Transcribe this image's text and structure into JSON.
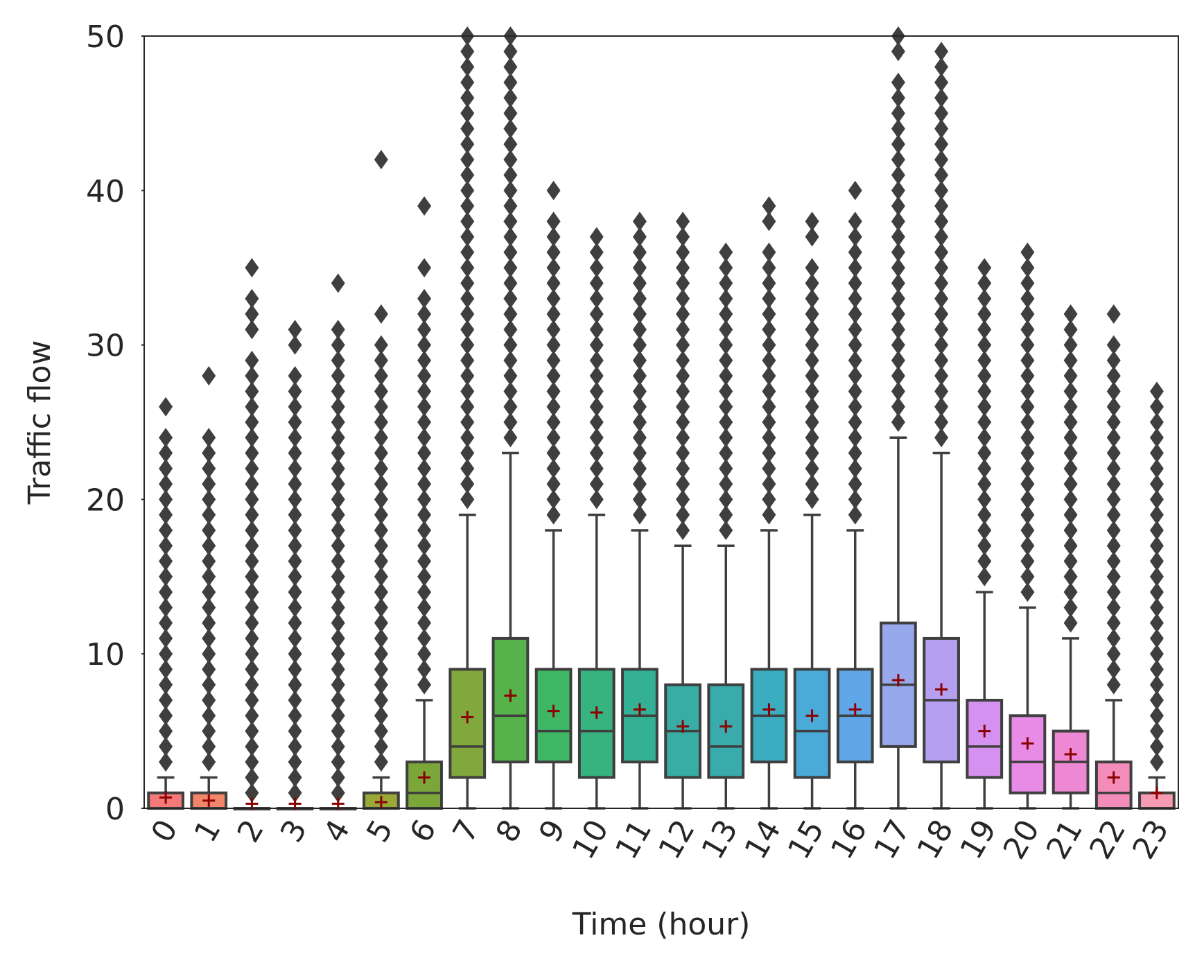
{
  "chart_data": {
    "type": "box",
    "title": "",
    "xlabel": "Time (hour)",
    "ylabel": "Traffic flow",
    "ylim": [
      0,
      50
    ],
    "yticks": [
      0,
      10,
      20,
      30,
      40,
      50
    ],
    "grid": false,
    "legend": "none",
    "categories": [
      "0",
      "1",
      "2",
      "3",
      "4",
      "5",
      "6",
      "7",
      "8",
      "9",
      "10",
      "11",
      "12",
      "13",
      "14",
      "15",
      "16",
      "17",
      "18",
      "19",
      "20",
      "21",
      "22",
      "23"
    ],
    "colors": [
      "#f47a7a",
      "#f1866a",
      "#e49244",
      "#d49c2c",
      "#b1a630",
      "#9aa836",
      "#7ba73a",
      "#80a83c",
      "#56b24a",
      "#3db764",
      "#36b37f",
      "#34b194",
      "#37ada5",
      "#39abad",
      "#3aadc0",
      "#4aaad8",
      "#60a7e8",
      "#97a8ed",
      "#b59ff0",
      "#d491ef",
      "#e78be7",
      "#ef88d4",
      "#f38cba",
      "#f59ab0"
    ],
    "boxes": [
      {
        "q1": 0,
        "median": 0,
        "q3": 1,
        "whisker_low": 0,
        "whisker_high": 2,
        "mean": 0.7,
        "outliers": [
          3,
          4,
          5,
          6,
          7,
          8,
          9,
          10,
          11,
          12,
          13,
          14,
          15,
          16,
          17,
          18,
          19,
          20,
          21,
          22,
          23,
          24,
          26
        ]
      },
      {
        "q1": 0,
        "median": 0,
        "q3": 1,
        "whisker_low": 0,
        "whisker_high": 2,
        "mean": 0.5,
        "outliers": [
          3,
          4,
          5,
          6,
          7,
          8,
          9,
          10,
          11,
          12,
          13,
          14,
          15,
          16,
          17,
          18,
          19,
          20,
          21,
          22,
          23,
          24,
          28
        ]
      },
      {
        "q1": 0,
        "median": 0,
        "q3": 0,
        "whisker_low": 0,
        "whisker_high": 0,
        "mean": 0.3,
        "outliers": [
          1,
          2,
          3,
          4,
          5,
          6,
          7,
          8,
          9,
          10,
          11,
          12,
          13,
          14,
          15,
          16,
          17,
          18,
          19,
          20,
          21,
          22,
          23,
          24,
          25,
          26,
          27,
          28,
          29,
          31,
          32,
          33,
          35
        ]
      },
      {
        "q1": 0,
        "median": 0,
        "q3": 0,
        "whisker_low": 0,
        "whisker_high": 0,
        "mean": 0.3,
        "outliers": [
          1,
          2,
          3,
          4,
          5,
          6,
          7,
          8,
          9,
          10,
          11,
          12,
          13,
          14,
          15,
          16,
          17,
          18,
          19,
          20,
          21,
          22,
          23,
          24,
          25,
          26,
          27,
          28,
          30,
          31
        ]
      },
      {
        "q1": 0,
        "median": 0,
        "q3": 0,
        "whisker_low": 0,
        "whisker_high": 0,
        "mean": 0.3,
        "outliers": [
          1,
          2,
          3,
          4,
          5,
          6,
          7,
          8,
          9,
          10,
          11,
          12,
          13,
          14,
          15,
          16,
          17,
          18,
          19,
          20,
          21,
          22,
          23,
          24,
          25,
          26,
          27,
          28,
          29,
          30,
          31,
          34
        ]
      },
      {
        "q1": 0,
        "median": 0,
        "q3": 1,
        "whisker_low": 0,
        "whisker_high": 2,
        "mean": 0.4,
        "outliers": [
          3,
          4,
          5,
          6,
          7,
          8,
          9,
          10,
          11,
          12,
          13,
          14,
          15,
          16,
          17,
          18,
          19,
          20,
          21,
          22,
          23,
          24,
          25,
          26,
          27,
          28,
          29,
          30,
          32,
          42
        ]
      },
      {
        "q1": 0,
        "median": 1,
        "q3": 3,
        "whisker_low": 0,
        "whisker_high": 7,
        "mean": 2.0,
        "outliers": [
          8,
          9,
          10,
          11,
          12,
          13,
          14,
          15,
          16,
          17,
          18,
          19,
          20,
          21,
          22,
          23,
          24,
          25,
          26,
          27,
          28,
          29,
          30,
          31,
          32,
          33,
          35,
          39
        ]
      },
      {
        "q1": 2,
        "median": 4,
        "q3": 9,
        "whisker_low": 0,
        "whisker_high": 19,
        "mean": 5.9,
        "outliers": [
          20,
          21,
          22,
          23,
          24,
          25,
          26,
          27,
          28,
          29,
          30,
          31,
          32,
          33,
          34,
          35,
          36,
          37,
          38,
          39,
          40,
          41,
          42,
          43,
          44,
          45,
          46,
          47,
          48,
          49,
          50
        ]
      },
      {
        "q1": 3,
        "median": 6,
        "q3": 11,
        "whisker_low": 0,
        "whisker_high": 23,
        "mean": 7.3,
        "outliers": [
          24,
          25,
          26,
          27,
          28,
          29,
          30,
          31,
          32,
          33,
          34,
          35,
          36,
          37,
          38,
          39,
          40,
          41,
          42,
          43,
          44,
          45,
          46,
          47,
          48,
          49,
          50
        ]
      },
      {
        "q1": 3,
        "median": 5,
        "q3": 9,
        "whisker_low": 0,
        "whisker_high": 18,
        "mean": 6.3,
        "outliers": [
          19,
          20,
          21,
          22,
          23,
          24,
          25,
          26,
          27,
          28,
          29,
          30,
          31,
          32,
          33,
          34,
          35,
          36,
          37,
          38,
          40
        ]
      },
      {
        "q1": 2,
        "median": 5,
        "q3": 9,
        "whisker_low": 0,
        "whisker_high": 19,
        "mean": 6.2,
        "outliers": [
          20,
          21,
          22,
          23,
          24,
          25,
          26,
          27,
          28,
          29,
          30,
          31,
          32,
          33,
          34,
          35,
          36,
          37
        ]
      },
      {
        "q1": 3,
        "median": 6,
        "q3": 9,
        "whisker_low": 0,
        "whisker_high": 18,
        "mean": 6.4,
        "outliers": [
          19,
          20,
          21,
          22,
          23,
          24,
          25,
          26,
          27,
          28,
          29,
          30,
          31,
          32,
          33,
          34,
          35,
          36,
          37,
          38
        ]
      },
      {
        "q1": 2,
        "median": 5,
        "q3": 8,
        "whisker_low": 0,
        "whisker_high": 17,
        "mean": 5.3,
        "outliers": [
          18,
          19,
          20,
          21,
          22,
          23,
          24,
          25,
          26,
          27,
          28,
          29,
          30,
          31,
          32,
          33,
          34,
          35,
          36,
          37,
          38
        ]
      },
      {
        "q1": 2,
        "median": 4,
        "q3": 8,
        "whisker_low": 0,
        "whisker_high": 17,
        "mean": 5.3,
        "outliers": [
          18,
          19,
          20,
          21,
          22,
          23,
          24,
          25,
          26,
          27,
          28,
          29,
          30,
          31,
          32,
          33,
          34,
          35,
          36
        ]
      },
      {
        "q1": 3,
        "median": 6,
        "q3": 9,
        "whisker_low": 0,
        "whisker_high": 18,
        "mean": 6.4,
        "outliers": [
          19,
          20,
          21,
          22,
          23,
          24,
          25,
          26,
          27,
          28,
          29,
          30,
          31,
          32,
          33,
          34,
          35,
          36,
          38,
          39
        ]
      },
      {
        "q1": 2,
        "median": 5,
        "q3": 9,
        "whisker_low": 0,
        "whisker_high": 19,
        "mean": 6.0,
        "outliers": [
          20,
          21,
          22,
          23,
          24,
          25,
          26,
          27,
          28,
          29,
          30,
          31,
          32,
          33,
          34,
          35,
          37,
          38
        ]
      },
      {
        "q1": 3,
        "median": 6,
        "q3": 9,
        "whisker_low": 0,
        "whisker_high": 18,
        "mean": 6.4,
        "outliers": [
          19,
          20,
          21,
          22,
          23,
          24,
          25,
          26,
          27,
          28,
          29,
          30,
          31,
          32,
          33,
          34,
          35,
          36,
          37,
          38,
          40
        ]
      },
      {
        "q1": 4,
        "median": 8,
        "q3": 12,
        "whisker_low": 0,
        "whisker_high": 24,
        "mean": 8.3,
        "outliers": [
          25,
          26,
          27,
          28,
          29,
          30,
          31,
          32,
          33,
          34,
          35,
          36,
          37,
          38,
          39,
          40,
          41,
          42,
          43,
          44,
          45,
          46,
          47,
          49,
          50
        ]
      },
      {
        "q1": 3,
        "median": 7,
        "q3": 11,
        "whisker_low": 0,
        "whisker_high": 23,
        "mean": 7.7,
        "outliers": [
          24,
          25,
          26,
          27,
          28,
          29,
          30,
          31,
          32,
          33,
          34,
          35,
          36,
          37,
          38,
          39,
          40,
          41,
          42,
          43,
          44,
          45,
          46,
          47,
          48,
          49
        ]
      },
      {
        "q1": 2,
        "median": 4,
        "q3": 7,
        "whisker_low": 0,
        "whisker_high": 14,
        "mean": 5.0,
        "outliers": [
          15,
          16,
          17,
          18,
          19,
          20,
          21,
          22,
          23,
          24,
          25,
          26,
          27,
          28,
          29,
          30,
          31,
          32,
          33,
          34,
          35
        ]
      },
      {
        "q1": 1,
        "median": 3,
        "q3": 6,
        "whisker_low": 0,
        "whisker_high": 13,
        "mean": 4.2,
        "outliers": [
          14,
          15,
          16,
          17,
          18,
          19,
          20,
          21,
          22,
          23,
          24,
          25,
          26,
          27,
          28,
          29,
          30,
          31,
          32,
          33,
          34,
          35,
          36
        ]
      },
      {
        "q1": 1,
        "median": 3,
        "q3": 5,
        "whisker_low": 0,
        "whisker_high": 11,
        "mean": 3.5,
        "outliers": [
          12,
          13,
          14,
          15,
          16,
          17,
          18,
          19,
          20,
          21,
          22,
          23,
          24,
          25,
          26,
          27,
          28,
          29,
          30,
          31,
          32
        ]
      },
      {
        "q1": 0,
        "median": 1,
        "q3": 3,
        "whisker_low": 0,
        "whisker_high": 7,
        "mean": 2.0,
        "outliers": [
          8,
          9,
          10,
          11,
          12,
          13,
          14,
          15,
          16,
          17,
          18,
          19,
          20,
          21,
          22,
          23,
          24,
          25,
          26,
          27,
          28,
          29,
          30,
          32
        ]
      },
      {
        "q1": 0,
        "median": 0,
        "q3": 1,
        "whisker_low": 0,
        "whisker_high": 2,
        "mean": 1.0,
        "outliers": [
          3,
          4,
          5,
          6,
          7,
          8,
          9,
          10,
          11,
          12,
          13,
          14,
          15,
          16,
          17,
          18,
          19,
          20,
          21,
          22,
          23,
          24,
          25,
          26,
          27
        ]
      }
    ]
  }
}
